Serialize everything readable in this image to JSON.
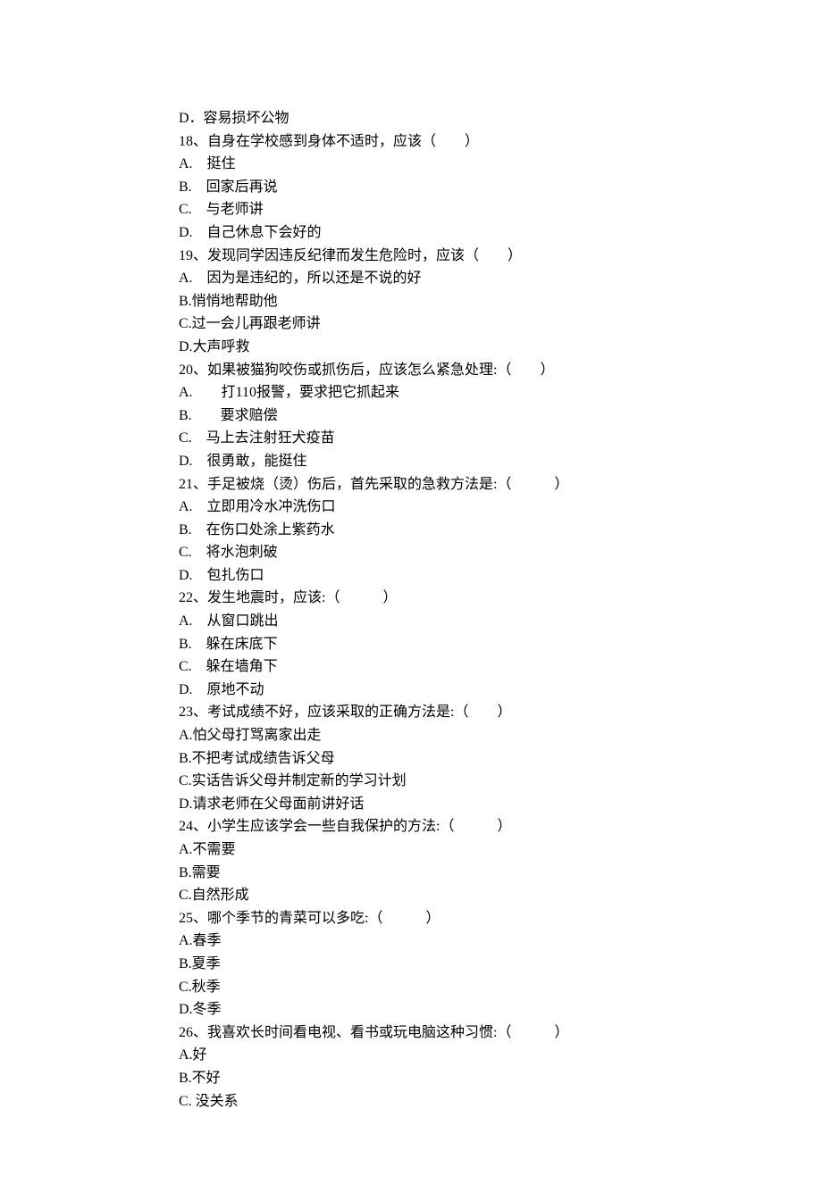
{
  "document": {
    "background_color": "#ffffff",
    "text_color": "#000000",
    "font_family": "SimSun",
    "font_size": 16,
    "line_height": 1.6
  },
  "lines": [
    "D．容易损坏公物",
    "18、自身在学校感到身体不适时，应该（　　）",
    "A.　挺住",
    "B.　回家后再说",
    "C.　与老师讲",
    "D.　自己休息下会好的",
    "19、发现同学因违反纪律而发生危险时，应该（　　）",
    "A.　因为是违纪的，所以还是不说的好",
    "B.悄悄地帮助他",
    "C.过一会儿再跟老师讲",
    "D.大声呼救",
    "20、如果被猫狗咬伤或抓伤后，应该怎么紧急处理:（　　）",
    "A.　　打110报警，要求把它抓起来",
    "B.　　要求赔偿",
    "C.　马上去注射狂犬疫苗",
    "D.　很勇敢，能挺住",
    "21、手足被烧（烫）伤后，首先采取的急救方法是:（　　　）",
    "A.　立即用冷水冲洗伤口",
    "B.　在伤口处涂上紫药水",
    "C.　将水泡刺破",
    "D.　包扎伤口",
    "22、发生地震时，应该:（　　　）",
    "A.　从窗口跳出",
    "B.　躲在床底下",
    "C.　躲在墙角下",
    "D.　原地不动",
    "23、考试成绩不好，应该采取的正确方法是:（　　）",
    "A.怕父母打骂离家出走",
    "B.不把考试成绩告诉父母",
    "C.实话告诉父母并制定新的学习计划",
    "D.请求老师在父母面前讲好话",
    "24、小学生应该学会一些自我保护的方法:（　　　）",
    "A.不需要",
    "B.需要",
    "C.自然形成",
    "25、哪个季节的青菜可以多吃:（　　　）",
    "A.春季",
    "B.夏季",
    "C.秋季",
    "D.冬季",
    "26、我喜欢长时间看电视、看书或玩电脑这种习惯:（　　　）",
    "A.好",
    "B.不好",
    "C. 没关系"
  ]
}
